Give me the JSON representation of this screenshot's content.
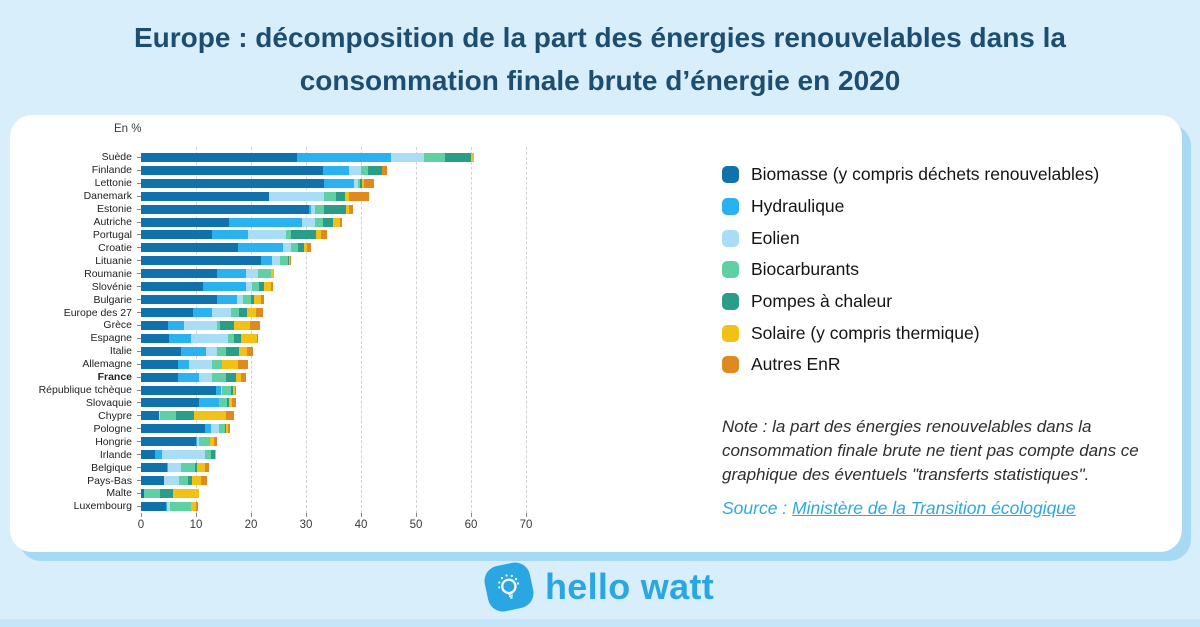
{
  "title": {
    "line1": "Europe : décomposition de la part des énergies renouvelables dans la",
    "line2": "consommation finale brute d’énergie en 2020"
  },
  "chart_data": {
    "type": "bar",
    "orientation": "horizontal-stacked",
    "unit_label": "En %",
    "xlim": [
      0,
      70
    ],
    "xticks": [
      0,
      10,
      20,
      30,
      40,
      50,
      60,
      70
    ],
    "grid": "vertical-dashed",
    "legend_position": "right",
    "series": [
      {
        "name": "Biomasse (y compris déchets renouvelables)",
        "color": "#1172ab"
      },
      {
        "name": "Hydraulique",
        "color": "#29b2ef"
      },
      {
        "name": "Eolien",
        "color": "#a9ddf6"
      },
      {
        "name": "Biocarburants",
        "color": "#5ed0a4"
      },
      {
        "name": "Pompes à chaleur",
        "color": "#2a9d88"
      },
      {
        "name": "Solaire (y compris thermique)",
        "color": "#f1c115"
      },
      {
        "name": "Autres EnR",
        "color": "#df8a21"
      }
    ],
    "rows": [
      {
        "label": "Suède",
        "bold": false,
        "values": [
          28.4,
          17.1,
          6.0,
          3.7,
          4.8,
          0.6,
          0
        ]
      },
      {
        "label": "Finlande",
        "bold": false,
        "values": [
          33.0,
          4.9,
          2.1,
          1.2,
          2.7,
          0,
          0.8
        ]
      },
      {
        "label": "Lettonie",
        "bold": false,
        "values": [
          33.2,
          5.5,
          0.7,
          0.4,
          0.4,
          0.3,
          1.8
        ]
      },
      {
        "label": "Danemark",
        "bold": false,
        "values": [
          23.3,
          0,
          9.9,
          2.3,
          1.6,
          0.8,
          3.6
        ]
      },
      {
        "label": "Estonie",
        "bold": false,
        "values": [
          30.6,
          0.3,
          0.7,
          1.6,
          4.1,
          0.6,
          0.6
        ]
      },
      {
        "label": "Autriche",
        "bold": false,
        "values": [
          16.0,
          13.2,
          2.4,
          1.5,
          1.9,
          1.2,
          0.3
        ]
      },
      {
        "label": "Portugal",
        "bold": false,
        "values": [
          12.9,
          6.6,
          6.9,
          0.8,
          4.6,
          0.9,
          1.2
        ]
      },
      {
        "label": "Croatie",
        "bold": false,
        "values": [
          17.6,
          8.2,
          1.5,
          1.2,
          1.1,
          0.5,
          0.8
        ]
      },
      {
        "label": "Lituanie",
        "bold": false,
        "values": [
          21.8,
          2.1,
          1.3,
          1.5,
          0.2,
          0.2,
          0.2
        ]
      },
      {
        "label": "Roumanie",
        "bold": false,
        "values": [
          13.9,
          5.2,
          2.1,
          2.4,
          0,
          0.6,
          0
        ]
      },
      {
        "label": "Slovénie",
        "bold": false,
        "values": [
          11.2,
          7.9,
          1.0,
          1.3,
          1.0,
          1.2,
          0.4
        ]
      },
      {
        "label": "Bulgarie",
        "bold": false,
        "values": [
          13.9,
          3.6,
          1.1,
          1.4,
          0.5,
          1.3,
          0.5
        ]
      },
      {
        "label": "Europe des 27",
        "bold": false,
        "values": [
          9.4,
          3.6,
          3.4,
          1.5,
          1.4,
          1.6,
          1.2
        ]
      },
      {
        "label": "Grèce",
        "bold": false,
        "values": [
          4.9,
          2.9,
          6.0,
          0.6,
          2.6,
          2.9,
          1.8
        ]
      },
      {
        "label": "Espagne",
        "bold": false,
        "values": [
          5.0,
          4.1,
          6.7,
          1.2,
          1.2,
          2.9,
          0.1
        ]
      },
      {
        "label": "Italie",
        "bold": false,
        "values": [
          7.3,
          4.6,
          2.0,
          1.5,
          2.4,
          1.5,
          1.1
        ]
      },
      {
        "label": "Allemagne",
        "bold": false,
        "values": [
          6.7,
          2.1,
          4.2,
          1.7,
          0,
          2.9,
          1.8
        ]
      },
      {
        "label": "France",
        "bold": true,
        "values": [
          6.7,
          3.9,
          2.4,
          2.5,
          1.8,
          0.9,
          0.9
        ]
      },
      {
        "label": "République tchèque",
        "bold": false,
        "values": [
          13.6,
          0.9,
          0.2,
          1.6,
          0.4,
          0.4,
          0.2
        ]
      },
      {
        "label": "Slovaquie",
        "bold": false,
        "values": [
          10.6,
          3.5,
          0,
          1.5,
          0.4,
          0.5,
          0.8
        ]
      },
      {
        "label": "Chypre",
        "bold": false,
        "values": [
          3.2,
          0,
          0.3,
          2.8,
          3.3,
          5.8,
          1.6
        ]
      },
      {
        "label": "Pologne",
        "bold": false,
        "values": [
          11.6,
          1.1,
          1.4,
          1.2,
          0.1,
          0.5,
          0.2
        ]
      },
      {
        "label": "Hongrie",
        "bold": false,
        "values": [
          10.0,
          0.2,
          0.3,
          2.0,
          0,
          0.8,
          0.6
        ]
      },
      {
        "label": "Irlande",
        "bold": false,
        "values": [
          2.5,
          1.3,
          7.8,
          1.1,
          0.8,
          0.2,
          0
        ]
      },
      {
        "label": "Belgique",
        "bold": false,
        "values": [
          4.7,
          0.3,
          2.3,
          2.5,
          0.4,
          1.4,
          0.8
        ]
      },
      {
        "label": "Pays-Bas",
        "bold": false,
        "values": [
          4.2,
          0,
          2.8,
          1.6,
          0.6,
          1.7,
          1.1
        ]
      },
      {
        "label": "Malte",
        "bold": false,
        "values": [
          0.6,
          0,
          0,
          2.9,
          2.4,
          4.7,
          0
        ]
      },
      {
        "label": "Luxembourg",
        "bold": false,
        "values": [
          4.5,
          0.3,
          0.4,
          3.9,
          0,
          0.9,
          0.3
        ]
      }
    ]
  },
  "note": {
    "text": "Note : la part des énergies renouvelables dans la consommation finale brute ne tient pas compte dans ce graphique des éventuels \"transferts statistiques\"."
  },
  "source": {
    "prefix": "Source : ",
    "link_label": "Ministère de la Transition écologique"
  },
  "footer": {
    "brand": "hello watt"
  }
}
